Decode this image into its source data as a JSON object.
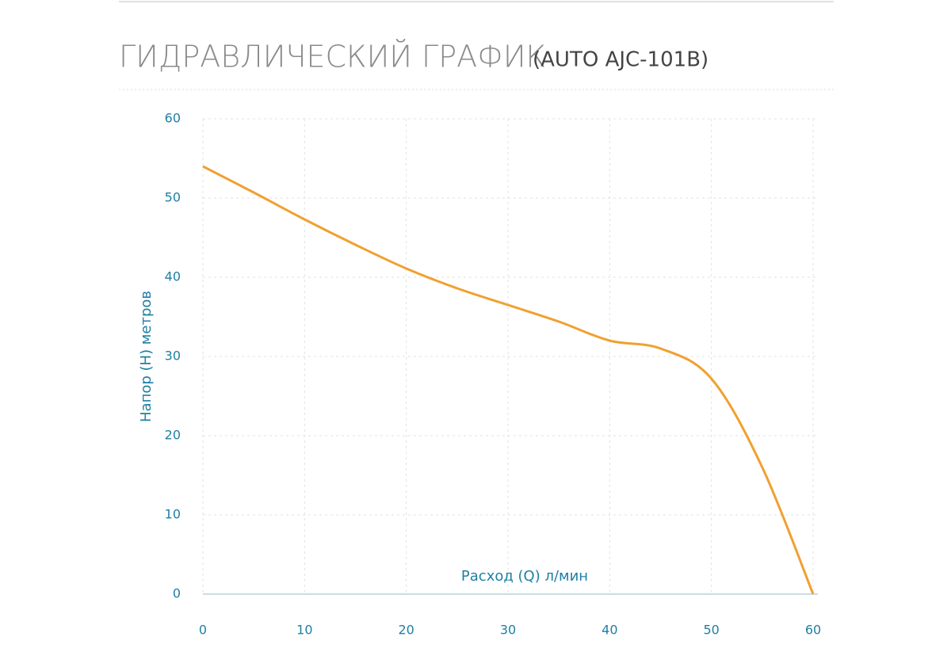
{
  "chart_data": {
    "type": "line",
    "title": "ГИДРАВЛИЧЕСКИЙ ГРАФИК",
    "subtitle": "(AUTO AJC-101B)",
    "x_label": "Расход (Q) л/мин",
    "y_label": "Напор (H) метров",
    "x": [
      0,
      5,
      10,
      15,
      20,
      25,
      30,
      35,
      40,
      45,
      50,
      55,
      60
    ],
    "series": [
      {
        "name": "AUTO AJC-101B",
        "color": "#f0a030",
        "values": [
          54,
          50.7,
          47.3,
          44.1,
          41.1,
          38.6,
          36.5,
          34.4,
          32,
          31,
          27.2,
          16,
          0
        ]
      }
    ],
    "xlim": [
      0,
      60
    ],
    "xticks": [
      0,
      10,
      20,
      30,
      40,
      50,
      60
    ],
    "ylim": [
      0,
      60
    ],
    "yticks": [
      0,
      10,
      20,
      30,
      40,
      50,
      60
    ],
    "grid": true
  }
}
